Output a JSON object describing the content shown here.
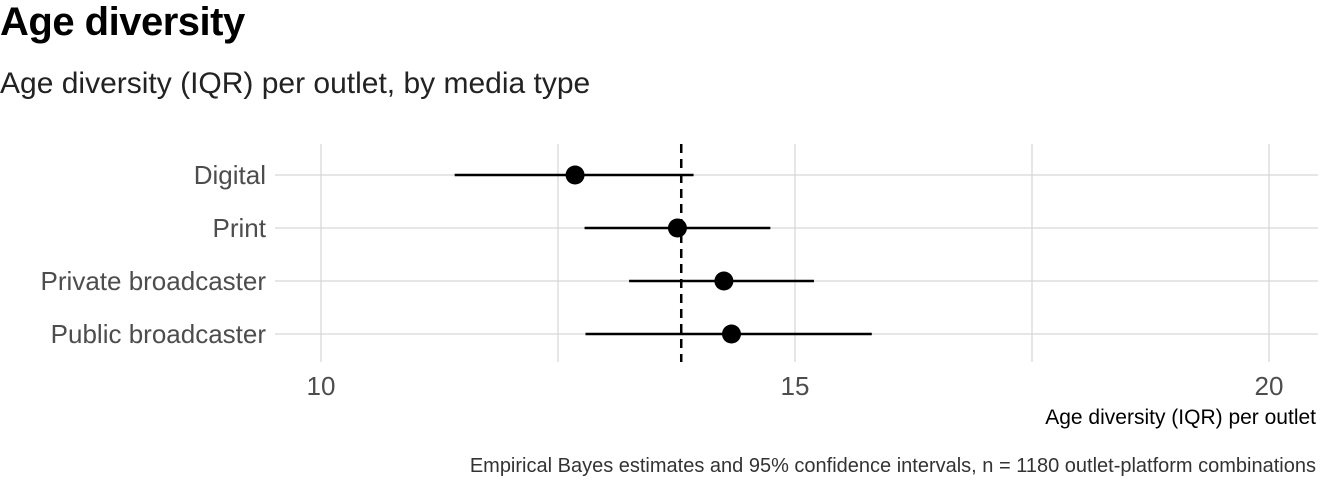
{
  "title": "Age diversity",
  "subtitle": "Age diversity (IQR) per outlet, by media type",
  "caption": "Empirical Bayes estimates and 95% confidence intervals, n = 1180 outlet-platform combinations",
  "chart_data": {
    "type": "scatter",
    "orientation": "horizontal",
    "xlabel": "Age diversity (IQR) per outlet",
    "xlim": [
      9.5,
      20.5
    ],
    "xticks": [
      10,
      15,
      20
    ],
    "grid": true,
    "reference_line": {
      "x": 13.8,
      "style": "dashed"
    },
    "categories": [
      "Digital",
      "Print",
      "Private broadcaster",
      "Public broadcaster"
    ],
    "estimates": [
      12.68,
      13.76,
      14.25,
      14.33
    ],
    "ci_low": [
      11.41,
      12.78,
      13.25,
      12.79
    ],
    "ci_high": [
      13.93,
      14.74,
      15.2,
      15.81
    ],
    "colors": {
      "point": "#000000",
      "grid": "#d6d6d6"
    }
  }
}
